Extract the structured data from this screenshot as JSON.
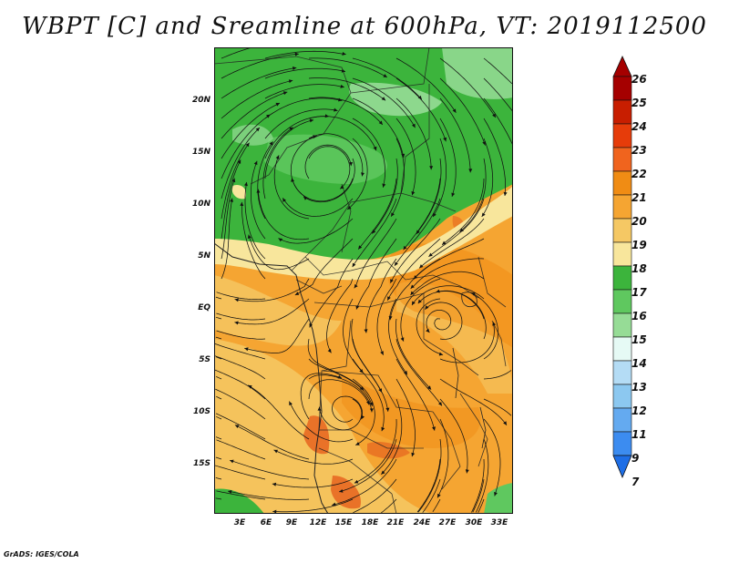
{
  "title": "WBPT [C] and Sreamline at 600hPa, VT: 2019112500",
  "credit": "GrADS: IGES/COLA",
  "lat_labels": [
    "20N",
    "15N",
    "10N",
    "5N",
    "EQ",
    "5S",
    "10S",
    "15S"
  ],
  "lon_labels": [
    "3E",
    "6E",
    "9E",
    "12E",
    "15E",
    "18E",
    "21E",
    "24E",
    "27E",
    "30E",
    "33E"
  ],
  "colorbar": {
    "labels": [
      "26",
      "25",
      "24",
      "23",
      "22",
      "21",
      "20",
      "19",
      "18",
      "17",
      "16",
      "15",
      "14",
      "13",
      "12",
      "11",
      "9",
      "7"
    ],
    "colors": [
      "#a50000",
      "#c81e00",
      "#e63c0a",
      "#f0641e",
      "#f08c14",
      "#f5a532",
      "#f5c864",
      "#f8e69c",
      "#3cb43c",
      "#5fc85f",
      "#96dc96",
      "#e6faf5",
      "#b4dcf5",
      "#8cc8f0",
      "#64aaf0",
      "#3c8cf0",
      "#1e6ee6"
    ]
  },
  "map_colors": {
    "green_dark": "#3cb43c",
    "green_mid": "#5fc85f",
    "green_light": "#96dc96",
    "yellow": "#f8e69c",
    "orange_light": "#f5c864",
    "orange": "#f5a532",
    "orange_dark": "#f08c14",
    "red_orange": "#e6641e"
  }
}
